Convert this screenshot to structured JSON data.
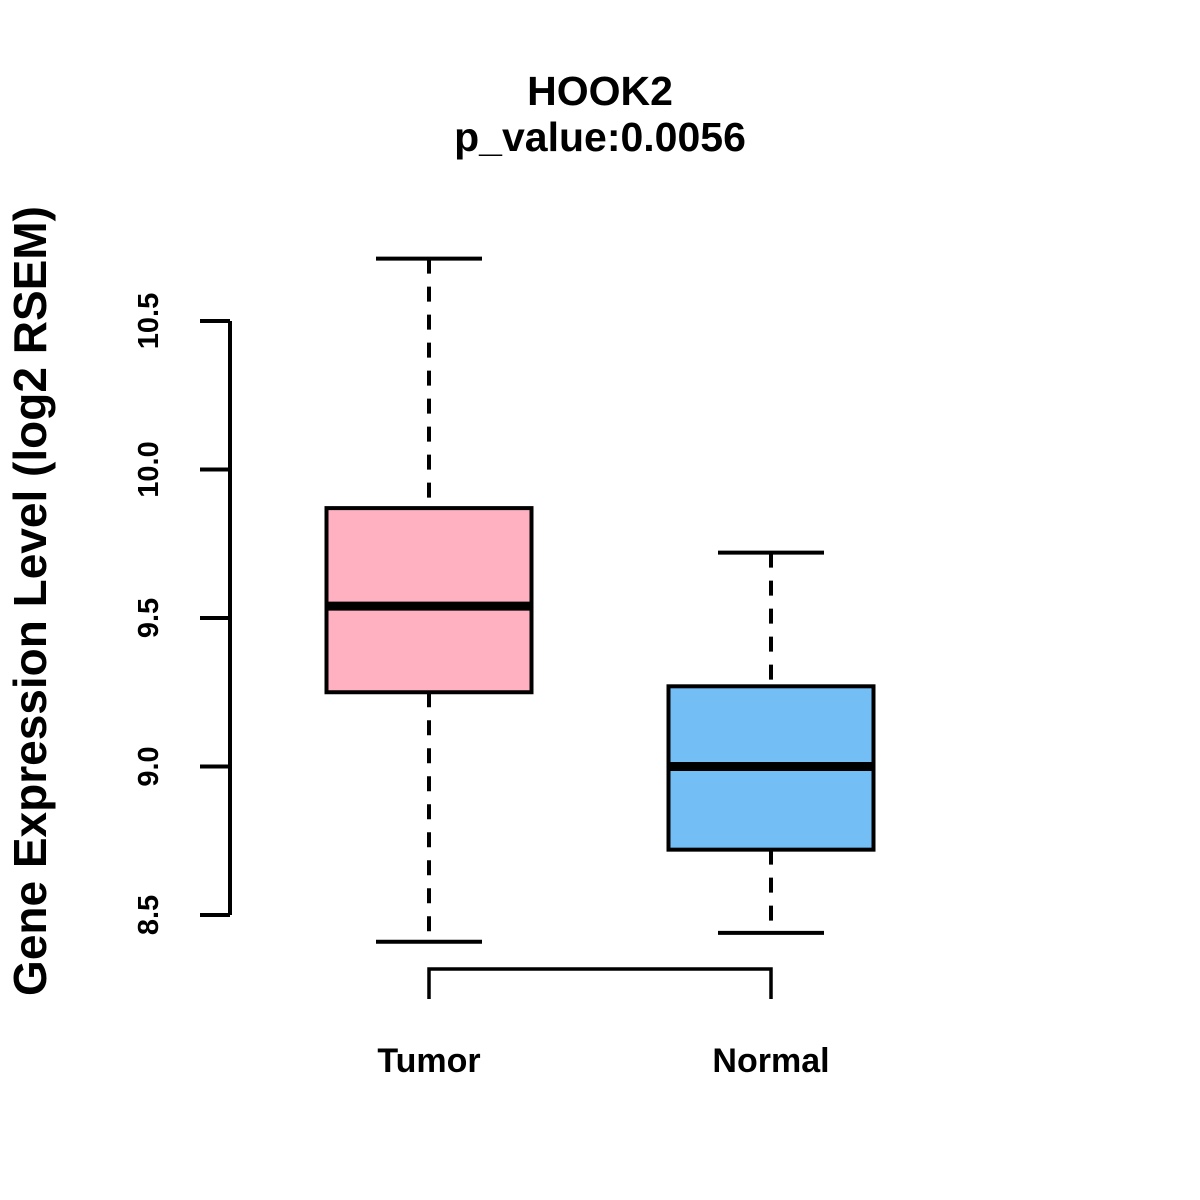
{
  "figure": {
    "background_color": "#ffffff",
    "line_color": "#000000"
  },
  "chart_data": {
    "type": "boxplot",
    "title": "HOOK2",
    "subtitle": "p_value:0.0056",
    "ylabel": "Gene Expression Level (log2 RSEM)",
    "xlabel": "",
    "categories": [
      "Tumor",
      "Normal"
    ],
    "yticks": [
      8.5,
      9.0,
      9.5,
      10.0,
      10.5
    ],
    "ylim": [
      8.5,
      10.5
    ],
    "grid": false,
    "legend": "none",
    "series": [
      {
        "name": "Tumor",
        "box_color": "#FFB1C2",
        "whisker_low": 8.41,
        "q1": 9.25,
        "median": 9.54,
        "q3": 9.87,
        "whisker_high": 10.71
      },
      {
        "name": "Normal",
        "box_color": "#74BEF6",
        "whisker_low": 8.44,
        "q1": 8.72,
        "median": 9.0,
        "q3": 9.27,
        "whisker_high": 9.72
      }
    ],
    "comparison_bracket": {
      "from": "Tumor",
      "to": "Normal"
    }
  }
}
